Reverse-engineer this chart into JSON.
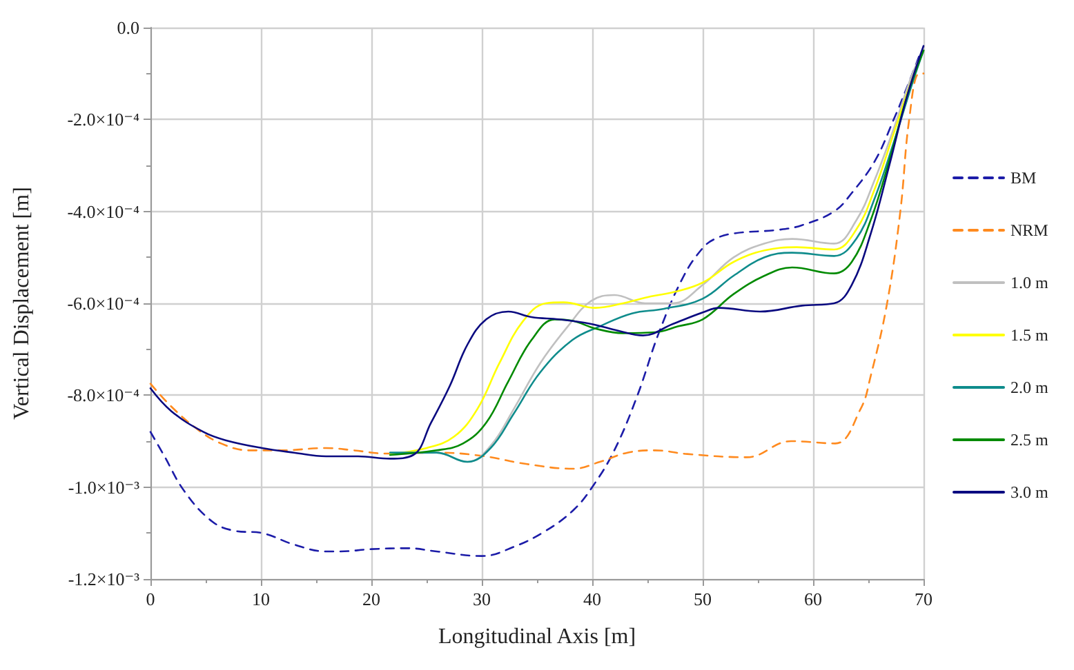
{
  "chart_data": {
    "type": "line",
    "xlabel": "Longitudinal Axis [m]",
    "ylabel": "Vertical Displacement [m]",
    "xlim": [
      0,
      70
    ],
    "xticks": [
      0,
      10,
      20,
      30,
      40,
      50,
      60,
      70
    ],
    "ylim": [
      -0.0012,
      0
    ],
    "yticks": [
      {
        "value": -0.0012,
        "label": "-1.2×10⁻³"
      },
      {
        "value": -0.001,
        "label": "-1.0×10⁻³"
      },
      {
        "value": -0.0008,
        "label": "-8.0×10⁻⁴"
      },
      {
        "value": -0.0006,
        "label": "-6.0×10⁻⁴"
      },
      {
        "value": -0.0004,
        "label": "-4.0×10⁻⁴"
      },
      {
        "value": -0.0002,
        "label": "-2.0×10⁻⁴"
      },
      {
        "value": 0,
        "label": "0.0"
      }
    ],
    "grid": true,
    "legend": "right",
    "marker": "none",
    "series": [
      {
        "name": "BM",
        "color": "#1c1ca8",
        "line_style": "dashed",
        "x": [
          0,
          1.2,
          3.1,
          5.6,
          7.6,
          10.1,
          13,
          15.9,
          17.1,
          20,
          23.3,
          25.9,
          30,
          32.9,
          35.8,
          38.3,
          40,
          42,
          44.1,
          46.1,
          48.3,
          50,
          51.1,
          52.8,
          56.9,
          59,
          61.9,
          63.5,
          65.6,
          67.3,
          68.5,
          69.8
        ],
        "values": [
          -0.00088,
          -0.00093,
          -0.00101,
          -0.001075,
          -0.001095,
          -0.0011,
          -0.001125,
          -0.00114,
          -0.00114,
          -0.001135,
          -0.001133,
          -0.00114,
          -0.00115,
          -0.00113,
          -0.001095,
          -0.00105,
          -0.001,
          -0.00092,
          -0.0008,
          -0.00066,
          -0.00054,
          -0.00048,
          -0.00046,
          -0.000448,
          -0.00044,
          -0.00043,
          -0.0004,
          -0.00036,
          -0.00029,
          -0.0002,
          -0.00013,
          -5e-05
        ]
      },
      {
        "name": "NRM",
        "color": "#ff8a1e",
        "line_style": "dashed",
        "x": [
          0,
          1.9,
          4.3,
          6.4,
          8.9,
          11.8,
          15.9,
          18.4,
          21.3,
          25.9,
          30,
          34.1,
          38.3,
          40.7,
          43.2,
          45.7,
          48.6,
          54,
          58,
          62,
          64.3,
          65.2,
          66.7,
          67.9,
          68.7,
          69.6,
          70
        ],
        "values": [
          -0.000775,
          -0.000825,
          -0.000875,
          -0.000905,
          -0.00092,
          -0.00092,
          -0.000915,
          -0.00092,
          -0.000927,
          -0.000925,
          -0.000932,
          -0.00095,
          -0.00096,
          -0.000945,
          -0.000925,
          -0.00092,
          -0.000928,
          -0.000935,
          -0.0009,
          -0.000905,
          -0.00083,
          -0.00076,
          -0.0006,
          -0.0004,
          -0.0002,
          -0.0001,
          -0.0001
        ]
      },
      {
        "name": "1.0 m",
        "color": "#c0c0c0",
        "x": [
          21.7,
          25.9,
          28.7,
          30.8,
          32.9,
          35.3,
          37.8,
          39.9,
          42,
          44.8,
          47.3,
          50,
          52.8,
          55.6,
          58.1,
          61.9,
          63.9,
          65.6,
          67.3,
          69,
          70
        ],
        "values": [
          -0.00093,
          -0.000925,
          -0.000945,
          -0.00091,
          -0.00083,
          -0.00073,
          -0.00065,
          -0.000595,
          -0.000582,
          -0.0006,
          -0.0006,
          -0.00056,
          -0.0005,
          -0.00047,
          -0.00046,
          -0.00047,
          -0.00042,
          -0.00033,
          -0.00022,
          -0.0001,
          -5e-05
        ]
      },
      {
        "name": "1.5 m",
        "color": "#ffff00",
        "x": [
          21.7,
          25,
          27.5,
          29.6,
          31.6,
          33.7,
          35.8,
          37.4,
          40.3,
          42.8,
          45.3,
          47.5,
          50,
          52.8,
          55.6,
          58.5,
          61.9,
          63.9,
          65.6,
          67.3,
          69,
          70
        ],
        "values": [
          -0.000928,
          -0.000915,
          -0.00089,
          -0.00083,
          -0.00073,
          -0.00064,
          -0.0006,
          -0.000598,
          -0.00061,
          -0.0006,
          -0.000585,
          -0.000575,
          -0.000555,
          -0.00051,
          -0.000485,
          -0.000478,
          -0.000483,
          -0.00044,
          -0.00035,
          -0.00023,
          -0.00011,
          -5e-05
        ]
      },
      {
        "name": "2.0 m",
        "color": "#0f8c8c",
        "x": [
          21.7,
          25.9,
          28.7,
          30.8,
          32.9,
          35.3,
          38.2,
          40.7,
          43.6,
          46.5,
          50,
          52.8,
          55.6,
          58.1,
          61.9,
          63.9,
          65.6,
          67.3,
          69,
          70
        ],
        "values": [
          -0.000925,
          -0.000925,
          -0.000945,
          -0.000915,
          -0.00084,
          -0.00075,
          -0.00068,
          -0.00065,
          -0.000622,
          -0.000612,
          -0.00059,
          -0.00054,
          -0.0005,
          -0.00049,
          -0.000497,
          -0.00046,
          -0.00037,
          -0.00025,
          -0.00012,
          -5e-05
        ]
      },
      {
        "name": "2.5 m",
        "color": "#008a00",
        "x": [
          21.7,
          25.9,
          28.3,
          30.4,
          32.4,
          34.5,
          36.6,
          38.2,
          40.3,
          42.8,
          45.7,
          47.8,
          50,
          52.8,
          55.6,
          58.1,
          61.9,
          63.5,
          65.2,
          66.9,
          68.5,
          70
        ],
        "values": [
          -0.00093,
          -0.00092,
          -0.000905,
          -0.00086,
          -0.00077,
          -0.00068,
          -0.000635,
          -0.000638,
          -0.000655,
          -0.000665,
          -0.000663,
          -0.00065,
          -0.000635,
          -0.00058,
          -0.00054,
          -0.000522,
          -0.000535,
          -0.00051,
          -0.00042,
          -0.00029,
          -0.00015,
          -5e-05
        ]
      },
      {
        "name": "3.0 m",
        "color": "#0a0a80",
        "x": [
          0,
          1.9,
          4.8,
          6.8,
          10.1,
          13,
          15.9,
          18.8,
          21.7,
          23.8,
          25.4,
          27.1,
          28.7,
          30.4,
          32.4,
          34.5,
          37,
          39.9,
          42.4,
          44.6,
          47.3,
          50,
          51.5,
          55.2,
          59,
          61.9,
          63.5,
          65.2,
          66.9,
          68.5,
          70
        ],
        "values": [
          -0.000785,
          -0.000835,
          -0.00088,
          -0.000898,
          -0.000915,
          -0.000925,
          -0.000933,
          -0.000933,
          -0.000938,
          -0.00093,
          -0.00086,
          -0.00078,
          -0.00069,
          -0.000635,
          -0.000618,
          -0.00063,
          -0.000635,
          -0.000645,
          -0.00066,
          -0.00067,
          -0.000645,
          -0.00062,
          -0.00061,
          -0.000618,
          -0.000605,
          -0.0006,
          -0.00056,
          -0.00045,
          -0.0003,
          -0.00015,
          -4e-05
        ]
      }
    ]
  }
}
